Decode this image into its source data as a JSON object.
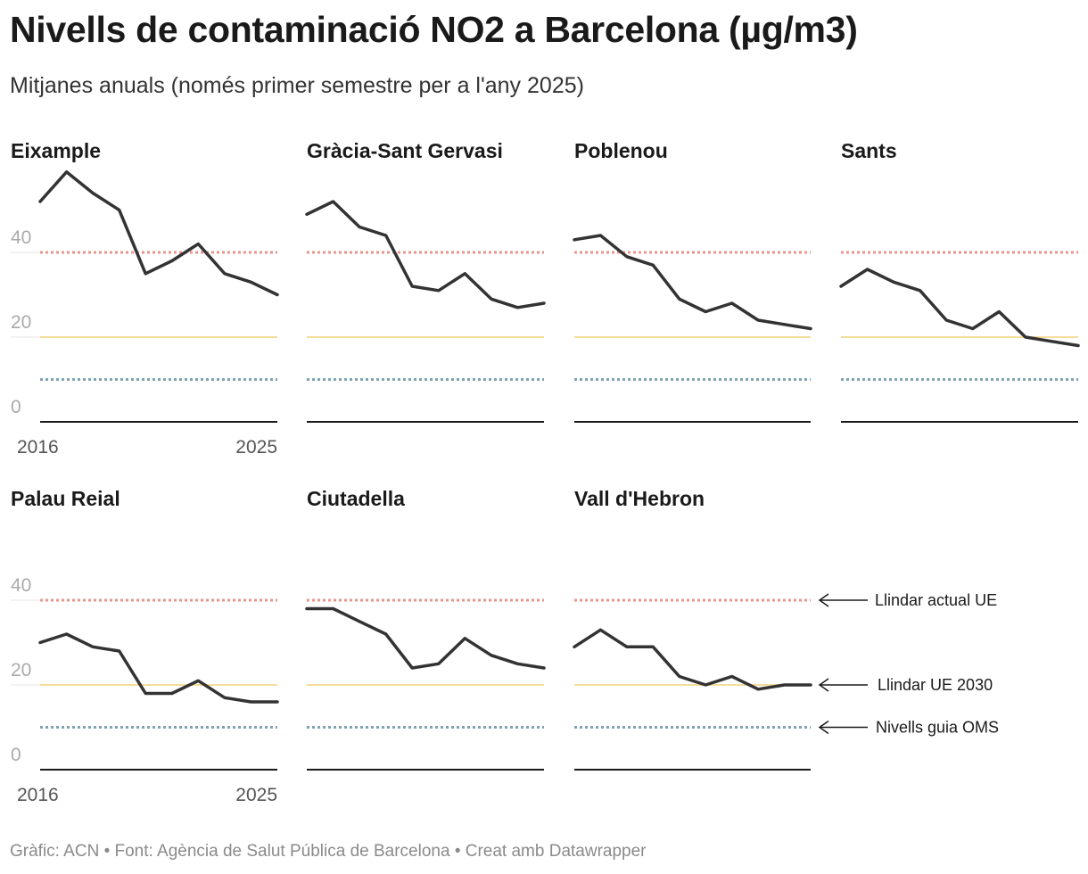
{
  "title": "Nivells de contaminació NO2 a Barcelona (µg/m3)",
  "subtitle": "Mitjanes anuals (només primer semestre per a l'any 2025)",
  "footer": "Gràfic: ACN • Font: Agència de Salut Pública de Barcelona • Creat amb Datawrapper",
  "colors": {
    "line": "#333333",
    "eu_current": "#e8958e",
    "eu_2030": "#f4dc9a",
    "who": "#7fa3b5",
    "axis": "#1a1a1a"
  },
  "chart_data": {
    "type": "line",
    "layout": "small-multiples",
    "x": [
      2016,
      2017,
      2018,
      2019,
      2020,
      2021,
      2022,
      2023,
      2024,
      2025
    ],
    "ylim": [
      0,
      60
    ],
    "yticks": [
      0,
      20,
      40
    ],
    "xtick_labels": [
      "2016",
      "2025"
    ],
    "reference_lines": [
      {
        "name": "Llindar actual UE",
        "value": 40,
        "color": "#e8958e"
      },
      {
        "name": "Llindar UE 2030",
        "value": 20,
        "color": "#f4dc9a"
      },
      {
        "name": "Nivells guia OMS",
        "value": 10,
        "color": "#7fa3b5"
      }
    ],
    "series": [
      {
        "name": "Eixample",
        "values": [
          52,
          59,
          54,
          50,
          35,
          38,
          42,
          35,
          33,
          30
        ]
      },
      {
        "name": "Gràcia-Sant Gervasi",
        "values": [
          49,
          52,
          46,
          44,
          32,
          31,
          35,
          29,
          27,
          28
        ]
      },
      {
        "name": "Poblenou",
        "values": [
          43,
          44,
          39,
          37,
          29,
          26,
          28,
          24,
          23,
          22
        ]
      },
      {
        "name": "Sants",
        "values": [
          32,
          36,
          33,
          31,
          24,
          22,
          26,
          20,
          19,
          18
        ]
      },
      {
        "name": "Palau Reial",
        "values": [
          30,
          32,
          29,
          28,
          18,
          18,
          21,
          17,
          16,
          16
        ]
      },
      {
        "name": "Ciutadella",
        "values": [
          38,
          38,
          35,
          32,
          24,
          25,
          31,
          27,
          25,
          24
        ]
      },
      {
        "name": "Vall d'Hebron",
        "values": [
          29,
          33,
          29,
          29,
          22,
          20,
          22,
          19,
          20,
          20
        ]
      }
    ]
  }
}
